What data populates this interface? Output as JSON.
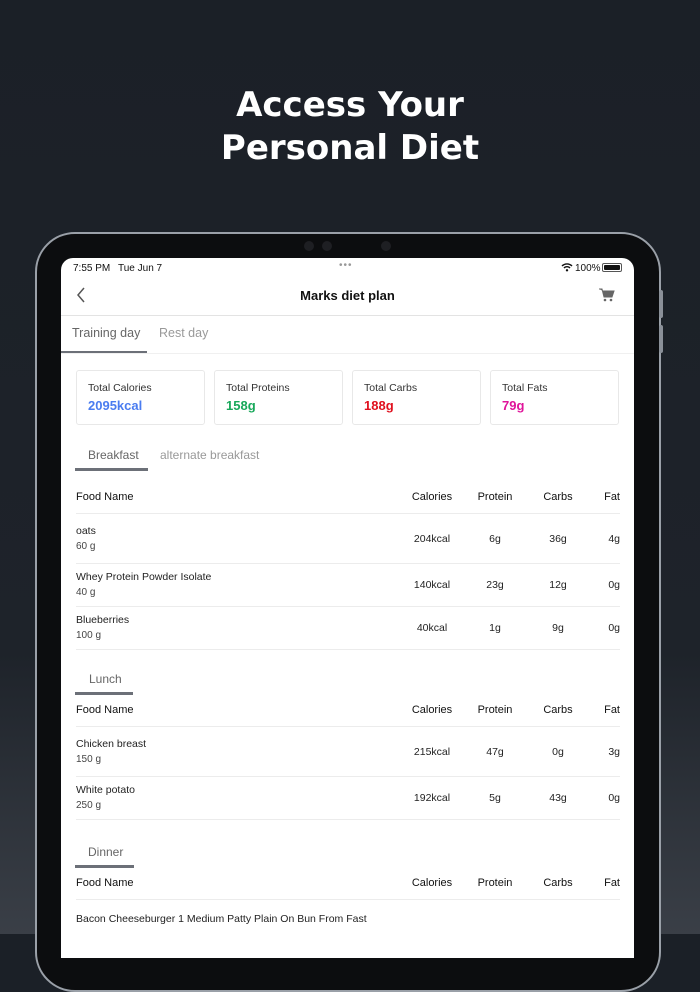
{
  "headline": {
    "line1": "Access Your",
    "line2": "Personal Diet"
  },
  "status_bar": {
    "time": "7:55 PM",
    "date": "Tue Jun 7",
    "battery": "100%"
  },
  "nav": {
    "title": "Marks diet plan"
  },
  "day_tabs": [
    {
      "label": "Training day",
      "active": true
    },
    {
      "label": "Rest day",
      "active": false
    }
  ],
  "totals": [
    {
      "label": "Total Calories",
      "value": "2095kcal",
      "color": "#4a7cf0"
    },
    {
      "label": "Total Proteins",
      "value": "158g",
      "color": "#18a85a"
    },
    {
      "label": "Total Carbs",
      "value": "188g",
      "color": "#e0101e"
    },
    {
      "label": "Total Fats",
      "value": "79g",
      "color": "#e0139a"
    }
  ],
  "columns": [
    "Food Name",
    "Calories",
    "Protein",
    "Carbs",
    "Fat"
  ],
  "breakfast": {
    "tabs": [
      "Breakfast",
      "alternate breakfast"
    ],
    "rows": [
      {
        "name": "oats",
        "qty": "60 g",
        "cal": "204kcal",
        "protein": "6g",
        "carbs": "36g",
        "fat": "4g"
      },
      {
        "name": "Whey Protein Powder Isolate",
        "qty": "40 g",
        "cal": "140kcal",
        "protein": "23g",
        "carbs": "12g",
        "fat": "0g"
      },
      {
        "name": "Blueberries",
        "qty": "100 g",
        "cal": "40kcal",
        "protein": "1g",
        "carbs": "9g",
        "fat": "0g"
      }
    ]
  },
  "lunch": {
    "label": "Lunch",
    "rows": [
      {
        "name": "Chicken breast",
        "qty": "150 g",
        "cal": "215kcal",
        "protein": "47g",
        "carbs": "0g",
        "fat": "3g"
      },
      {
        "name": "White potato",
        "qty": "250 g",
        "cal": "192kcal",
        "protein": "5g",
        "carbs": "43g",
        "fat": "0g"
      }
    ]
  },
  "dinner": {
    "label": "Dinner",
    "rows": [
      {
        "name": "Bacon Cheeseburger 1 Medium Patty Plain On Bun From Fast"
      }
    ]
  }
}
